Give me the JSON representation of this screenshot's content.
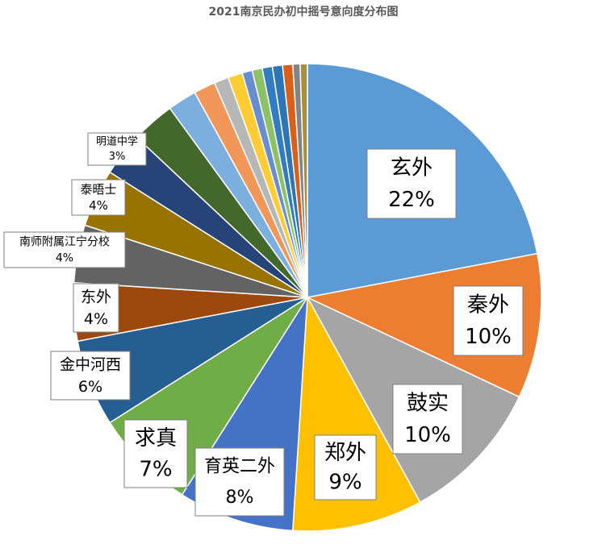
{
  "chart_data": {
    "type": "pie",
    "title": "2021南京民办初中摇号意向度分布图",
    "categories": [
      "玄外",
      "秦外",
      "鼓实",
      "郑外",
      "育英二外",
      "求真",
      "金中河西",
      "东外",
      "南师附属江宁分校",
      "泰晤士",
      "明道中学",
      null,
      null,
      null,
      null,
      null,
      null,
      null,
      null,
      null,
      null,
      null,
      null
    ],
    "values": [
      22,
      10,
      10,
      9,
      8,
      7,
      6,
      4,
      4,
      4,
      3,
      3,
      2,
      1.5,
      1,
      1,
      0.7,
      0.7,
      0.7,
      0.7,
      0.7,
      0.5,
      0.5
    ],
    "value_labels": [
      "22%",
      "10%",
      "10%",
      "9%",
      "8%",
      "7%",
      "6%",
      "4%",
      "4%",
      "4%",
      "3%",
      null,
      null,
      null,
      null,
      null,
      null,
      null,
      null,
      null,
      null,
      null,
      null
    ],
    "colors": [
      "#5b9bd5",
      "#ed7d31",
      "#a5a5a5",
      "#ffc000",
      "#4472c4",
      "#70ad47",
      "#255e91",
      "#9e480e",
      "#636363",
      "#997300",
      "#264478",
      "#43682b",
      "#7cafdd",
      "#f1975a",
      "#b7b7b7",
      "#ffcd33",
      "#698ed0",
      "#8cc168",
      "#327dc2",
      "#2e75b6",
      "#d86019",
      "#848484",
      "#a88f3d"
    ]
  }
}
